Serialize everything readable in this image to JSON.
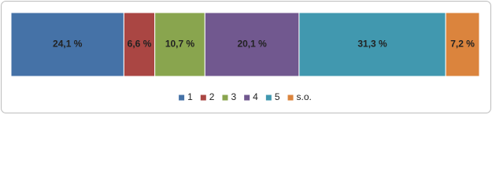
{
  "chart_data": {
    "type": "bar",
    "orientation": "horizontal",
    "stacked": true,
    "series": [
      {
        "name": "1",
        "color": "#4572a7",
        "values": [
          24.1
        ],
        "value_labels": [
          "24,1 %"
        ]
      },
      {
        "name": "2",
        "color": "#aa4643",
        "values": [
          6.6
        ],
        "value_labels": [
          "6,6 %"
        ]
      },
      {
        "name": "3",
        "color": "#89a54e",
        "values": [
          10.7
        ],
        "value_labels": [
          "10,7 %"
        ]
      },
      {
        "name": "4",
        "color": "#71588f",
        "values": [
          20.1
        ],
        "value_labels": [
          "20,1 %"
        ]
      },
      {
        "name": "5",
        "color": "#4198af",
        "values": [
          31.3
        ],
        "value_labels": [
          "31,3 %"
        ]
      },
      {
        "name": "s.o.",
        "color": "#db843d",
        "values": [
          7.2
        ],
        "value_labels": [
          "7,2 %"
        ]
      }
    ],
    "legend": "bottom"
  }
}
